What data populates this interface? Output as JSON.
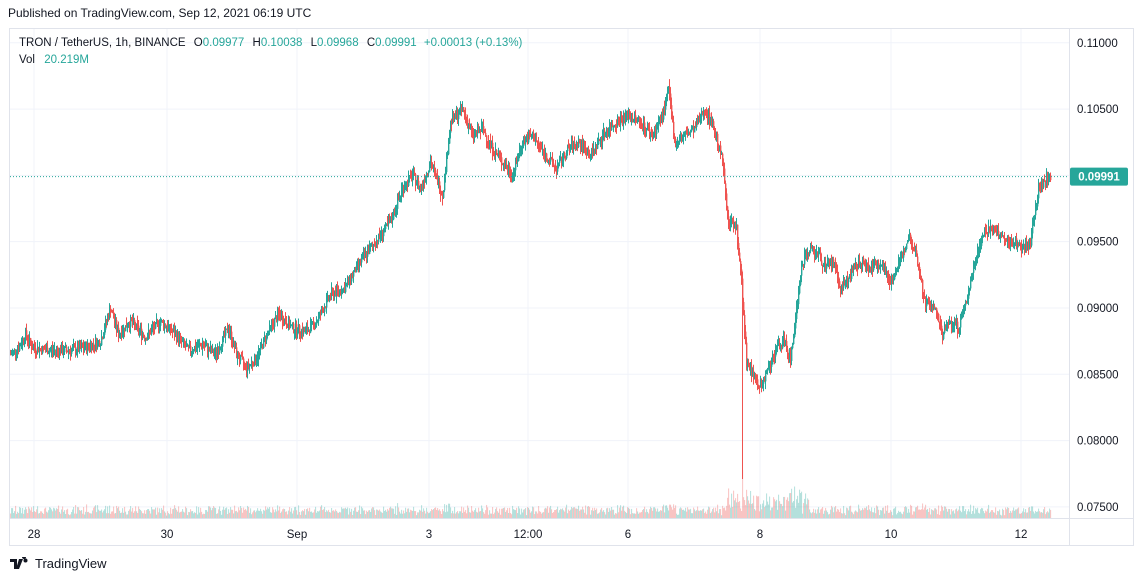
{
  "header": {
    "published": "Published on TradingView.com, Sep 12, 2021 06:19 UTC"
  },
  "legend": {
    "symbol": "TRON / TetherUS, 1h, BINANCE",
    "open_label": "O",
    "open": "0.09977",
    "high_label": "H",
    "high": "0.10038",
    "low_label": "L",
    "low": "0.09968",
    "close_label": "C",
    "close": "0.09991",
    "change": "+0.00013 (+0.13%)",
    "vol_label": "Vol",
    "vol": "20.219M"
  },
  "footer": {
    "brand": "TradingView"
  },
  "colors": {
    "up": "#26a69a",
    "down": "#ef5350",
    "last_price": "#26a69a",
    "grid": "#f0f3fa"
  },
  "chart_data": {
    "type": "candlestick",
    "title": "TRON / TetherUS, 1h, BINANCE",
    "y_ticks": [
      "0.11000",
      "0.10500",
      "0.10000",
      "0.09500",
      "0.09000",
      "0.08500",
      "0.08000",
      "0.07500"
    ],
    "ylim": [
      0.0742,
      0.111
    ],
    "x_ticks": [
      "28",
      "30",
      "Sep",
      "3",
      "12:00",
      "6",
      "8",
      "10",
      "12"
    ],
    "last_price": "0.09991",
    "grid": true,
    "price_path": [
      [
        0,
        0.0865
      ],
      [
        8,
        0.087
      ],
      [
        15,
        0.088
      ],
      [
        22,
        0.087
      ],
      [
        40,
        0.0868
      ],
      [
        60,
        0.0868
      ],
      [
        75,
        0.087
      ],
      [
        90,
        0.0875
      ],
      [
        100,
        0.09
      ],
      [
        108,
        0.088
      ],
      [
        120,
        0.089
      ],
      [
        135,
        0.0878
      ],
      [
        150,
        0.089
      ],
      [
        165,
        0.088
      ],
      [
        178,
        0.0868
      ],
      [
        192,
        0.0872
      ],
      [
        205,
        0.0865
      ],
      [
        218,
        0.0885
      ],
      [
        226,
        0.0865
      ],
      [
        236,
        0.0855
      ],
      [
        246,
        0.0862
      ],
      [
        256,
        0.088
      ],
      [
        268,
        0.0895
      ],
      [
        282,
        0.0885
      ],
      [
        295,
        0.0882
      ],
      [
        306,
        0.089
      ],
      [
        320,
        0.091
      ],
      [
        334,
        0.0915
      ],
      [
        350,
        0.0935
      ],
      [
        365,
        0.095
      ],
      [
        380,
        0.0965
      ],
      [
        392,
        0.099
      ],
      [
        402,
        0.1
      ],
      [
        410,
        0.099
      ],
      [
        420,
        0.101
      ],
      [
        432,
        0.0985
      ],
      [
        440,
        0.104
      ],
      [
        452,
        0.105
      ],
      [
        462,
        0.103
      ],
      [
        472,
        0.1035
      ],
      [
        482,
        0.102
      ],
      [
        492,
        0.101
      ],
      [
        502,
        0.1
      ],
      [
        512,
        0.1025
      ],
      [
        522,
        0.103
      ],
      [
        535,
        0.1015
      ],
      [
        546,
        0.1005
      ],
      [
        558,
        0.102
      ],
      [
        568,
        0.1025
      ],
      [
        580,
        0.1015
      ],
      [
        592,
        0.103
      ],
      [
        605,
        0.104
      ],
      [
        618,
        0.1045
      ],
      [
        630,
        0.104
      ],
      [
        642,
        0.103
      ],
      [
        652,
        0.1045
      ],
      [
        658,
        0.1065
      ],
      [
        664,
        0.1025
      ],
      [
        674,
        0.103
      ],
      [
        684,
        0.1035
      ],
      [
        694,
        0.105
      ],
      [
        704,
        0.1035
      ],
      [
        712,
        0.101
      ],
      [
        718,
        0.0965
      ],
      [
        726,
        0.096
      ],
      [
        731,
        0.092
      ],
      [
        736,
        0.086
      ],
      [
        742,
        0.085
      ],
      [
        750,
        0.084
      ],
      [
        758,
        0.0855
      ],
      [
        766,
        0.087
      ],
      [
        774,
        0.0875
      ],
      [
        780,
        0.086
      ],
      [
        786,
        0.09
      ],
      [
        792,
        0.0935
      ],
      [
        800,
        0.0945
      ],
      [
        808,
        0.094
      ],
      [
        815,
        0.093
      ],
      [
        822,
        0.0935
      ],
      [
        830,
        0.0915
      ],
      [
        840,
        0.0925
      ],
      [
        850,
        0.0935
      ],
      [
        860,
        0.093
      ],
      [
        870,
        0.0935
      ],
      [
        880,
        0.092
      ],
      [
        890,
        0.0935
      ],
      [
        898,
        0.0955
      ],
      [
        906,
        0.094
      ],
      [
        914,
        0.0905
      ],
      [
        924,
        0.09
      ],
      [
        932,
        0.088
      ],
      [
        940,
        0.089
      ],
      [
        948,
        0.0885
      ],
      [
        956,
        0.0905
      ],
      [
        964,
        0.0935
      ],
      [
        972,
        0.0955
      ],
      [
        980,
        0.096
      ],
      [
        988,
        0.0955
      ],
      [
        996,
        0.095
      ],
      [
        1004,
        0.095
      ],
      [
        1012,
        0.0945
      ],
      [
        1020,
        0.095
      ],
      [
        1028,
        0.099
      ],
      [
        1036,
        0.0997
      ],
      [
        1040,
        0.0999
      ]
    ]
  }
}
